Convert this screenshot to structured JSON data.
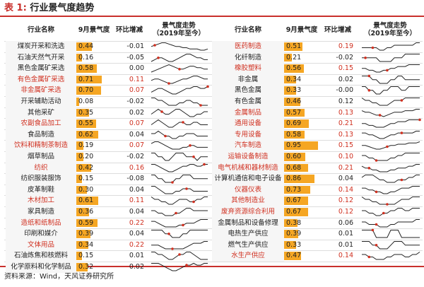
{
  "title": {
    "prefix": "表 1:",
    "text": "行业景气度趋势"
  },
  "headers": [
    "行业名称",
    "9月景气度",
    "环比增减",
    "景气度走势\n（2019年至今）"
  ],
  "colors": {
    "accent": "#c9302c",
    "bar": "#f5a623",
    "highlight": "#d03020"
  },
  "left": [
    {
      "name": "煤炭开采和洗选",
      "value": "0.44",
      "change": "-0.01",
      "red": false,
      "trend": [
        5,
        6,
        7,
        8,
        8,
        7,
        6,
        5,
        5,
        4,
        4,
        3,
        3,
        3,
        2,
        2,
        3
      ],
      "dot": 1
    },
    {
      "name": "石油天然气开采",
      "value": "0.16",
      "change": "-0.05",
      "red": false,
      "trend": [
        3,
        4,
        5,
        5,
        4,
        3,
        3,
        4,
        5,
        6,
        7,
        7,
        6,
        5,
        5,
        4,
        4
      ],
      "dot": 2
    },
    {
      "name": "黑色金属矿采选",
      "value": "0.58",
      "change": "0.00",
      "red": false,
      "trend": [
        3,
        4,
        5,
        6,
        7,
        8,
        7,
        6,
        5,
        5,
        6,
        7,
        7,
        6,
        6,
        5,
        5
      ],
      "dot": 8
    },
    {
      "name": "有色金属矿采选",
      "value": "0.71",
      "change": "0.11",
      "red": true,
      "trend": [
        5,
        6,
        6,
        5,
        4,
        3,
        3,
        4,
        5,
        6,
        6,
        7,
        8,
        8,
        7,
        6,
        6
      ],
      "dot": 5
    },
    {
      "name": "非金属矿采选",
      "value": "0.70",
      "change": "0.07",
      "red": true,
      "trend": [
        4,
        5,
        6,
        6,
        5,
        4,
        3,
        3,
        4,
        5,
        6,
        6,
        7,
        7,
        6,
        6,
        7
      ],
      "dot": 16
    },
    {
      "name": "开采辅助活动",
      "value": "0.08",
      "change": "-0.02",
      "red": false,
      "trend": [
        6,
        6,
        5,
        5,
        4,
        3,
        3,
        3,
        4,
        4,
        5,
        5,
        4,
        4,
        3,
        3,
        3
      ],
      "dot": 14
    },
    {
      "name": "其他采矿",
      "value": "0.35",
      "change": "0.02",
      "red": false,
      "trend": [
        4,
        5,
        6,
        5,
        4,
        4,
        5,
        6,
        6,
        5,
        4,
        3,
        3,
        4,
        4,
        5,
        5
      ],
      "dot": 3
    },
    {
      "name": "农副食品加工",
      "value": "0.55",
      "change": "0.07",
      "red": true,
      "trend": [
        5,
        6,
        7,
        6,
        5,
        4,
        4,
        5,
        6,
        6,
        5,
        5,
        6,
        6,
        5,
        5,
        5
      ],
      "dot": 9
    },
    {
      "name": "食品制造",
      "value": "0.62",
      "change": "0.04",
      "red": false,
      "trend": [
        6,
        6,
        7,
        6,
        5,
        5,
        4,
        4,
        5,
        5,
        6,
        6,
        6,
        5,
        5,
        5,
        5
      ],
      "dot": 4
    },
    {
      "name": "饮料和精制茶制造",
      "value": "0.19",
      "change": "0.07",
      "red": true,
      "trend": [
        6,
        7,
        7,
        6,
        5,
        4,
        3,
        3,
        3,
        4,
        4,
        5,
        5,
        4,
        4,
        4,
        4
      ],
      "dot": 11
    },
    {
      "name": "烟草制品",
      "value": "0.20",
      "change": "-0.02",
      "red": false,
      "trend": [
        5,
        5,
        4,
        4,
        3,
        3,
        4,
        5,
        5,
        5,
        4,
        4,
        4,
        3,
        4,
        4,
        4
      ],
      "dot": 12
    },
    {
      "name": "纺织",
      "value": "0.42",
      "change": "0.16",
      "red": true,
      "trend": [
        6,
        6,
        5,
        4,
        3,
        2,
        2,
        3,
        4,
        5,
        5,
        6,
        6,
        5,
        5,
        6,
        6
      ],
      "dot": 15
    },
    {
      "name": "纺织服装服饰",
      "value": "0.15",
      "change": "-0.08",
      "red": false,
      "trend": [
        5,
        5,
        4,
        4,
        3,
        3,
        3,
        4,
        4,
        5,
        5,
        5,
        4,
        4,
        4,
        4,
        4
      ],
      "dot": 6
    },
    {
      "name": "皮革制鞋",
      "value": "0.30",
      "change": "0.04",
      "red": false,
      "trend": [
        6,
        6,
        5,
        4,
        3,
        3,
        3,
        4,
        4,
        5,
        5,
        5,
        4,
        4,
        4,
        4,
        4
      ],
      "dot": 10
    },
    {
      "name": "木材加工",
      "value": "0.61",
      "change": "0.11",
      "red": true,
      "trend": [
        6,
        5,
        5,
        4,
        4,
        3,
        3,
        4,
        5,
        5,
        5,
        4,
        4,
        5,
        5,
        6,
        6
      ],
      "dot": 12
    },
    {
      "name": "家具制造",
      "value": "0.36",
      "change": "0.04",
      "red": false,
      "trend": [
        5,
        5,
        4,
        4,
        3,
        3,
        3,
        4,
        4,
        5,
        6,
        6,
        5,
        5,
        5,
        5,
        5
      ],
      "dot": 7
    },
    {
      "name": "造纸和纸制品",
      "value": "0.59",
      "change": "0.22",
      "red": true,
      "trend": [
        6,
        6,
        5,
        4,
        3,
        3,
        3,
        3,
        4,
        4,
        5,
        5,
        5,
        6,
        7,
        7,
        7
      ],
      "dot": 9
    },
    {
      "name": "印刷和媒介",
      "value": "0.39",
      "change": "0.04",
      "red": false,
      "trend": [
        5,
        5,
        5,
        5,
        4,
        4,
        3,
        3,
        3,
        4,
        4,
        5,
        5,
        5,
        5,
        5,
        5
      ],
      "dot": 5
    },
    {
      "name": "文体用品",
      "value": "0.34",
      "change": "0.22",
      "red": true,
      "trend": [
        5,
        5,
        5,
        4,
        3,
        3,
        3,
        3,
        3,
        3,
        4,
        5,
        6,
        6,
        6,
        7,
        7
      ],
      "dot": 6
    },
    {
      "name": "石油炼焦和核燃料",
      "value": "0.15",
      "change": "0.01",
      "red": false,
      "trend": [
        6,
        6,
        5,
        5,
        4,
        3,
        3,
        4,
        5,
        5,
        6,
        6,
        5,
        4,
        3,
        3,
        3
      ],
      "dot": 8
    },
    {
      "name": "化学原料和化学制品",
      "value": "0.32",
      "change": "0.02",
      "red": false,
      "trend": [
        6,
        6,
        6,
        5,
        4,
        3,
        2,
        2,
        3,
        4,
        5,
        5,
        6,
        5,
        5,
        6,
        6
      ],
      "dot": 10
    }
  ],
  "right": [
    {
      "name": "医药制造",
      "value": "0.51",
      "change": "0.19",
      "red": true,
      "trend": [
        5,
        5,
        5,
        5,
        5,
        4,
        4,
        5,
        5,
        6,
        6,
        6,
        6,
        6,
        6,
        7,
        7
      ],
      "dot": 3
    },
    {
      "name": "化纤制造",
      "value": "0.21",
      "change": "-0.02",
      "red": false,
      "trend": [
        5,
        5,
        5,
        5,
        5,
        4,
        4,
        4,
        4,
        5,
        5,
        5,
        6,
        6,
        6,
        6,
        6
      ],
      "dot": 1
    },
    {
      "name": "橡胶塑料",
      "value": "0.56",
      "change": "0.15",
      "red": true,
      "trend": [
        5,
        5,
        4,
        4,
        3,
        3,
        4,
        4,
        5,
        5,
        6,
        6,
        6,
        7,
        7,
        7,
        7
      ],
      "dot": 7
    },
    {
      "name": "非金属",
      "value": "0.34",
      "change": "0.02",
      "red": false,
      "trend": [
        6,
        6,
        6,
        5,
        5,
        4,
        4,
        4,
        5,
        5,
        6,
        6,
        5,
        5,
        5,
        5,
        5
      ],
      "dot": 2
    },
    {
      "name": "黑色金属",
      "value": "0.33",
      "change": "-0.00",
      "red": false,
      "trend": [
        5,
        5,
        4,
        4,
        3,
        3,
        4,
        4,
        5,
        5,
        5,
        4,
        4,
        5,
        5,
        5,
        5
      ],
      "dot": 2
    },
    {
      "name": "有色金属",
      "value": "0.46",
      "change": "0.12",
      "red": false,
      "trend": [
        6,
        5,
        5,
        4,
        4,
        3,
        3,
        3,
        4,
        5,
        5,
        5,
        6,
        6,
        6,
        6,
        6
      ],
      "dot": 11
    },
    {
      "name": "金属制品",
      "value": "0.57",
      "change": "0.13",
      "red": true,
      "trend": [
        6,
        5,
        5,
        4,
        3,
        3,
        2,
        3,
        4,
        5,
        5,
        5,
        6,
        6,
        6,
        7,
        7
      ],
      "dot": 5
    },
    {
      "name": "通用设备",
      "value": "0.69",
      "change": "0.21",
      "red": true,
      "trend": [
        5,
        5,
        4,
        4,
        3,
        3,
        3,
        4,
        5,
        5,
        6,
        6,
        6,
        7,
        7,
        7,
        7
      ],
      "dot": 16
    },
    {
      "name": "专用设备",
      "value": "0.58",
      "change": "0.13",
      "red": true,
      "trend": [
        6,
        6,
        5,
        5,
        4,
        3,
        3,
        4,
        5,
        5,
        6,
        6,
        6,
        6,
        6,
        7,
        7
      ],
      "dot": 11
    },
    {
      "name": "汽车制造",
      "value": "0.95",
      "change": "0.15",
      "red": true,
      "trend": [
        5,
        5,
        4,
        3,
        2,
        2,
        3,
        4,
        5,
        5,
        6,
        6,
        6,
        7,
        7,
        7,
        8
      ],
      "dot": 7
    },
    {
      "name": "运输设备制造",
      "value": "0.60",
      "change": "0.10",
      "red": true,
      "trend": [
        5,
        5,
        4,
        4,
        3,
        3,
        3,
        3,
        4,
        4,
        5,
        5,
        6,
        6,
        6,
        6,
        6
      ],
      "dot": 4
    },
    {
      "name": "电气机械和器材制造",
      "value": "0.68",
      "change": "0.21",
      "red": true,
      "trend": [
        6,
        5,
        5,
        4,
        4,
        3,
        3,
        3,
        4,
        4,
        5,
        5,
        5,
        6,
        6,
        7,
        7
      ],
      "dot": 2
    },
    {
      "name": "计算机通信和电子设备",
      "value": "0.86",
      "change": "0.04",
      "red": false,
      "trend": [
        5,
        6,
        6,
        6,
        5,
        4,
        4,
        3,
        3,
        3,
        4,
        4,
        4,
        5,
        5,
        6,
        6
      ],
      "dot": 11
    },
    {
      "name": "仪器仪表",
      "value": "0.73",
      "change": "0.14",
      "red": true,
      "trend": [
        6,
        6,
        5,
        5,
        4,
        4,
        3,
        3,
        4,
        4,
        5,
        6,
        6,
        6,
        7,
        7,
        7
      ],
      "dot": 4
    },
    {
      "name": "其他制造业",
      "value": "0.67",
      "change": "0.12",
      "red": true,
      "trend": [
        6,
        5,
        5,
        4,
        4,
        3,
        3,
        3,
        3,
        3,
        4,
        5,
        5,
        5,
        6,
        6,
        6
      ],
      "dot": 7
    },
    {
      "name": "废弃资源综合利用",
      "value": "0.67",
      "change": "0.12",
      "red": true,
      "trend": [
        5,
        5,
        4,
        4,
        3,
        3,
        4,
        4,
        5,
        5,
        6,
        6,
        5,
        5,
        6,
        6,
        6
      ],
      "dot": 6
    },
    {
      "name": "金属制品和设备修理",
      "value": "0.38",
      "change": "0.06",
      "red": false,
      "trend": [
        5,
        5,
        4,
        4,
        4,
        3,
        3,
        3,
        4,
        4,
        5,
        5,
        5,
        5,
        5,
        6,
        6
      ],
      "dot": 4
    },
    {
      "name": "电热生产供应",
      "value": "0.39",
      "change": "0.01",
      "red": false,
      "trend": [
        5,
        5,
        5,
        5,
        4,
        4,
        4,
        4,
        5,
        5,
        5,
        4,
        4,
        4,
        4,
        4,
        4
      ],
      "dot": 3
    },
    {
      "name": "燃气生产供应",
      "value": "0.33",
      "change": "0.01",
      "red": false,
      "trend": [
        5,
        5,
        5,
        4,
        4,
        3,
        3,
        3,
        4,
        5,
        5,
        5,
        4,
        4,
        4,
        4,
        4
      ],
      "dot": 4
    },
    {
      "name": "水生产供应",
      "value": "0.47",
      "change": "0.14",
      "red": true,
      "trend": [
        5,
        5,
        4,
        4,
        3,
        3,
        3,
        4,
        4,
        5,
        5,
        5,
        4,
        4,
        5,
        5,
        6
      ],
      "dot": 2
    }
  ],
  "footer": {
    "source": "资料来源：Wind，天风证券研究所"
  }
}
